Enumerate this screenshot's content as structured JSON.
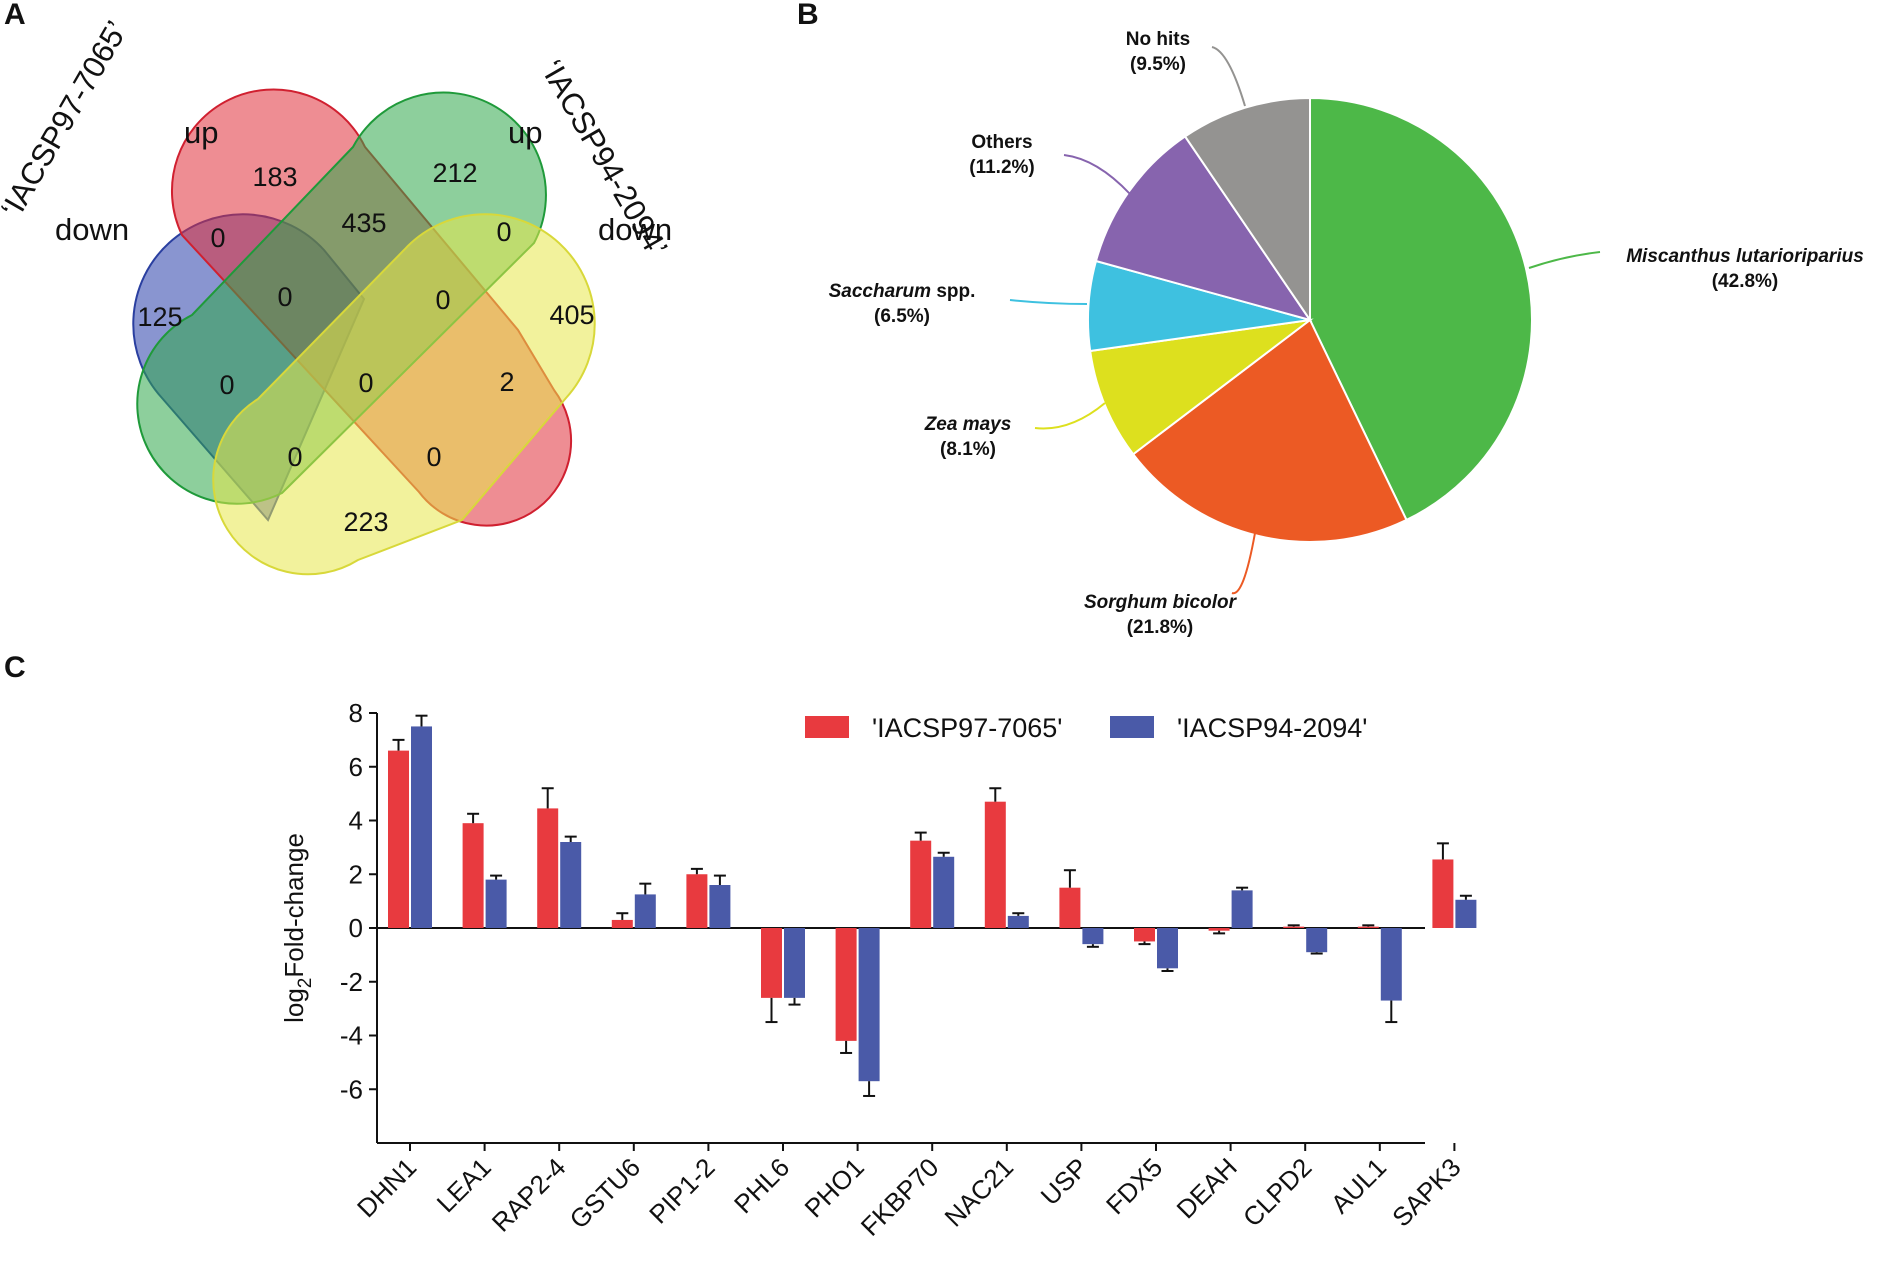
{
  "panels": {
    "a": "A",
    "b": "B",
    "c": "C"
  },
  "venn": {
    "sets": [
      {
        "name": "'IACSP97-7065' down",
        "color": "#3a4fb0"
      },
      {
        "name": "'IACSP97-7065' up",
        "color": "#e0303a"
      },
      {
        "name": "'IACSP94-2094' up",
        "color": "#2fa84a"
      },
      {
        "name": "'IACSP94-2094' down",
        "color": "#e8e84a"
      }
    ],
    "group_left": "‘IACSP97-7065’",
    "group_right": "‘IACSP94-2094’",
    "up": "up",
    "down": "down",
    "counts": {
      "only_97_down": "125",
      "only_97_up": "183",
      "only_94_up": "212",
      "only_94_down": "405",
      "97down_97up": "0",
      "97up_94up": "435",
      "94up_94down": "0",
      "97down_97up_94up": "0",
      "97up_94up_94down": "0",
      "97down_94up": "0",
      "all_four": "0",
      "97up_94down": "2",
      "97down_94up_94down": "0",
      "97down_97up_94down": "0",
      "97down_94down": "223"
    }
  },
  "chart_data": [
    {
      "type": "pie",
      "panel": "B",
      "slices": [
        {
          "label": "Miscanthus lutarioriparius",
          "label_italic": "Miscanthus lutarioriparius",
          "label_rest": "",
          "pct_text": "(42.8%)",
          "value": 42.8,
          "color": "#4db848"
        },
        {
          "label": "Sorghum bicolor",
          "label_italic": "Sorghum bicolor",
          "label_rest": "",
          "pct_text": "(21.8%)",
          "value": 21.8,
          "color": "#ec5a24"
        },
        {
          "label": "Zea mays",
          "label_italic": "Zea mays",
          "label_rest": "",
          "pct_text": "(8.1%)",
          "value": 8.1,
          "color": "#dde01e"
        },
        {
          "label": "Saccharum spp.",
          "label_italic": "Saccharum",
          "label_rest": " spp.",
          "pct_text": "(6.5%)",
          "value": 6.5,
          "color": "#3ec1e0"
        },
        {
          "label": "Others",
          "label_italic": "",
          "label_rest": "Others",
          "pct_text": "(11.2%)",
          "value": 11.2,
          "color": "#8764ae"
        },
        {
          "label": "No hits",
          "label_italic": "",
          "label_rest": "No hits",
          "pct_text": "(9.5%)",
          "value": 9.5,
          "color": "#949391"
        }
      ]
    },
    {
      "type": "bar",
      "panel": "C",
      "ylabel_main": "log",
      "ylabel_sub": "2",
      "ylabel_rest": "Fold-change",
      "ylim": [
        -8,
        8
      ],
      "yticks": [
        8,
        6,
        4,
        2,
        0,
        -2,
        -4,
        -6
      ],
      "categories": [
        "DHN1",
        "LEA1",
        "RAP2-4",
        "GSTU6",
        "PIP1-2",
        "PHL6",
        "PHO1",
        "FKBP70",
        "NAC21",
        "USP",
        "FDX5",
        "DEAH",
        "CLPD2",
        "AUL1",
        "SAPK3"
      ],
      "series": [
        {
          "name": "'IACSP97-7065'",
          "color": "#e83a3f",
          "values": [
            6.6,
            3.9,
            4.45,
            0.3,
            2.0,
            -2.6,
            -4.2,
            3.25,
            4.7,
            1.5,
            -0.5,
            -0.1,
            0.05,
            0.05,
            2.55
          ],
          "errors": [
            0.4,
            0.35,
            0.75,
            0.25,
            0.2,
            0.9,
            0.45,
            0.3,
            0.5,
            0.65,
            0.1,
            0.1,
            0.05,
            0.05,
            0.6
          ]
        },
        {
          "name": "'IACSP94-2094'",
          "color": "#4a5aa8",
          "values": [
            7.5,
            1.8,
            3.2,
            1.25,
            1.6,
            -2.6,
            -5.7,
            2.65,
            0.45,
            -0.6,
            -1.5,
            1.4,
            -0.9,
            -2.7,
            1.05
          ],
          "errors": [
            0.4,
            0.15,
            0.2,
            0.4,
            0.35,
            0.25,
            0.55,
            0.15,
            0.1,
            0.1,
            0.1,
            0.1,
            0.05,
            0.8,
            0.15
          ]
        }
      ]
    }
  ]
}
